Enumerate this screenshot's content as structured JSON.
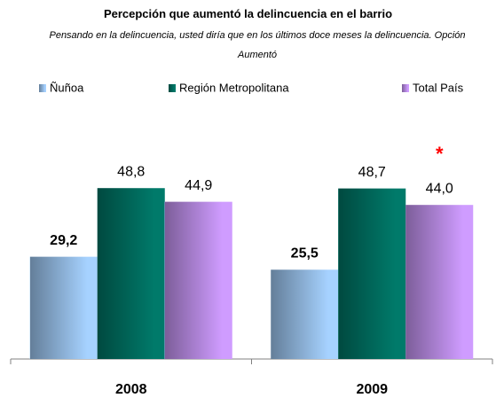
{
  "chart_data": {
    "type": "bar",
    "title": "Percepción que aumentó la delincuencia en el barrio",
    "subtitle": "Pensando en la delincuencia, usted diría que en los últimos doce meses la delincuencia. Opción Aumentó",
    "categories": [
      "2008",
      "2009"
    ],
    "series": [
      {
        "name": "Ñuñoa",
        "color": "#a6d2ff",
        "values": [
          29.2,
          25.5
        ],
        "value_labels": [
          "29,2",
          "25,5"
        ]
      },
      {
        "name": "Región Metropolitana",
        "color": "#007a6a",
        "values": [
          48.8,
          48.7
        ],
        "value_labels": [
          "48,8",
          "48,7"
        ]
      },
      {
        "name": "Total País",
        "color": "#cf9cff",
        "values": [
          44.9,
          44.0
        ],
        "value_labels": [
          "44,9",
          "44,0"
        ]
      }
    ],
    "annotation": "*",
    "ylim": [
      0,
      60
    ]
  }
}
